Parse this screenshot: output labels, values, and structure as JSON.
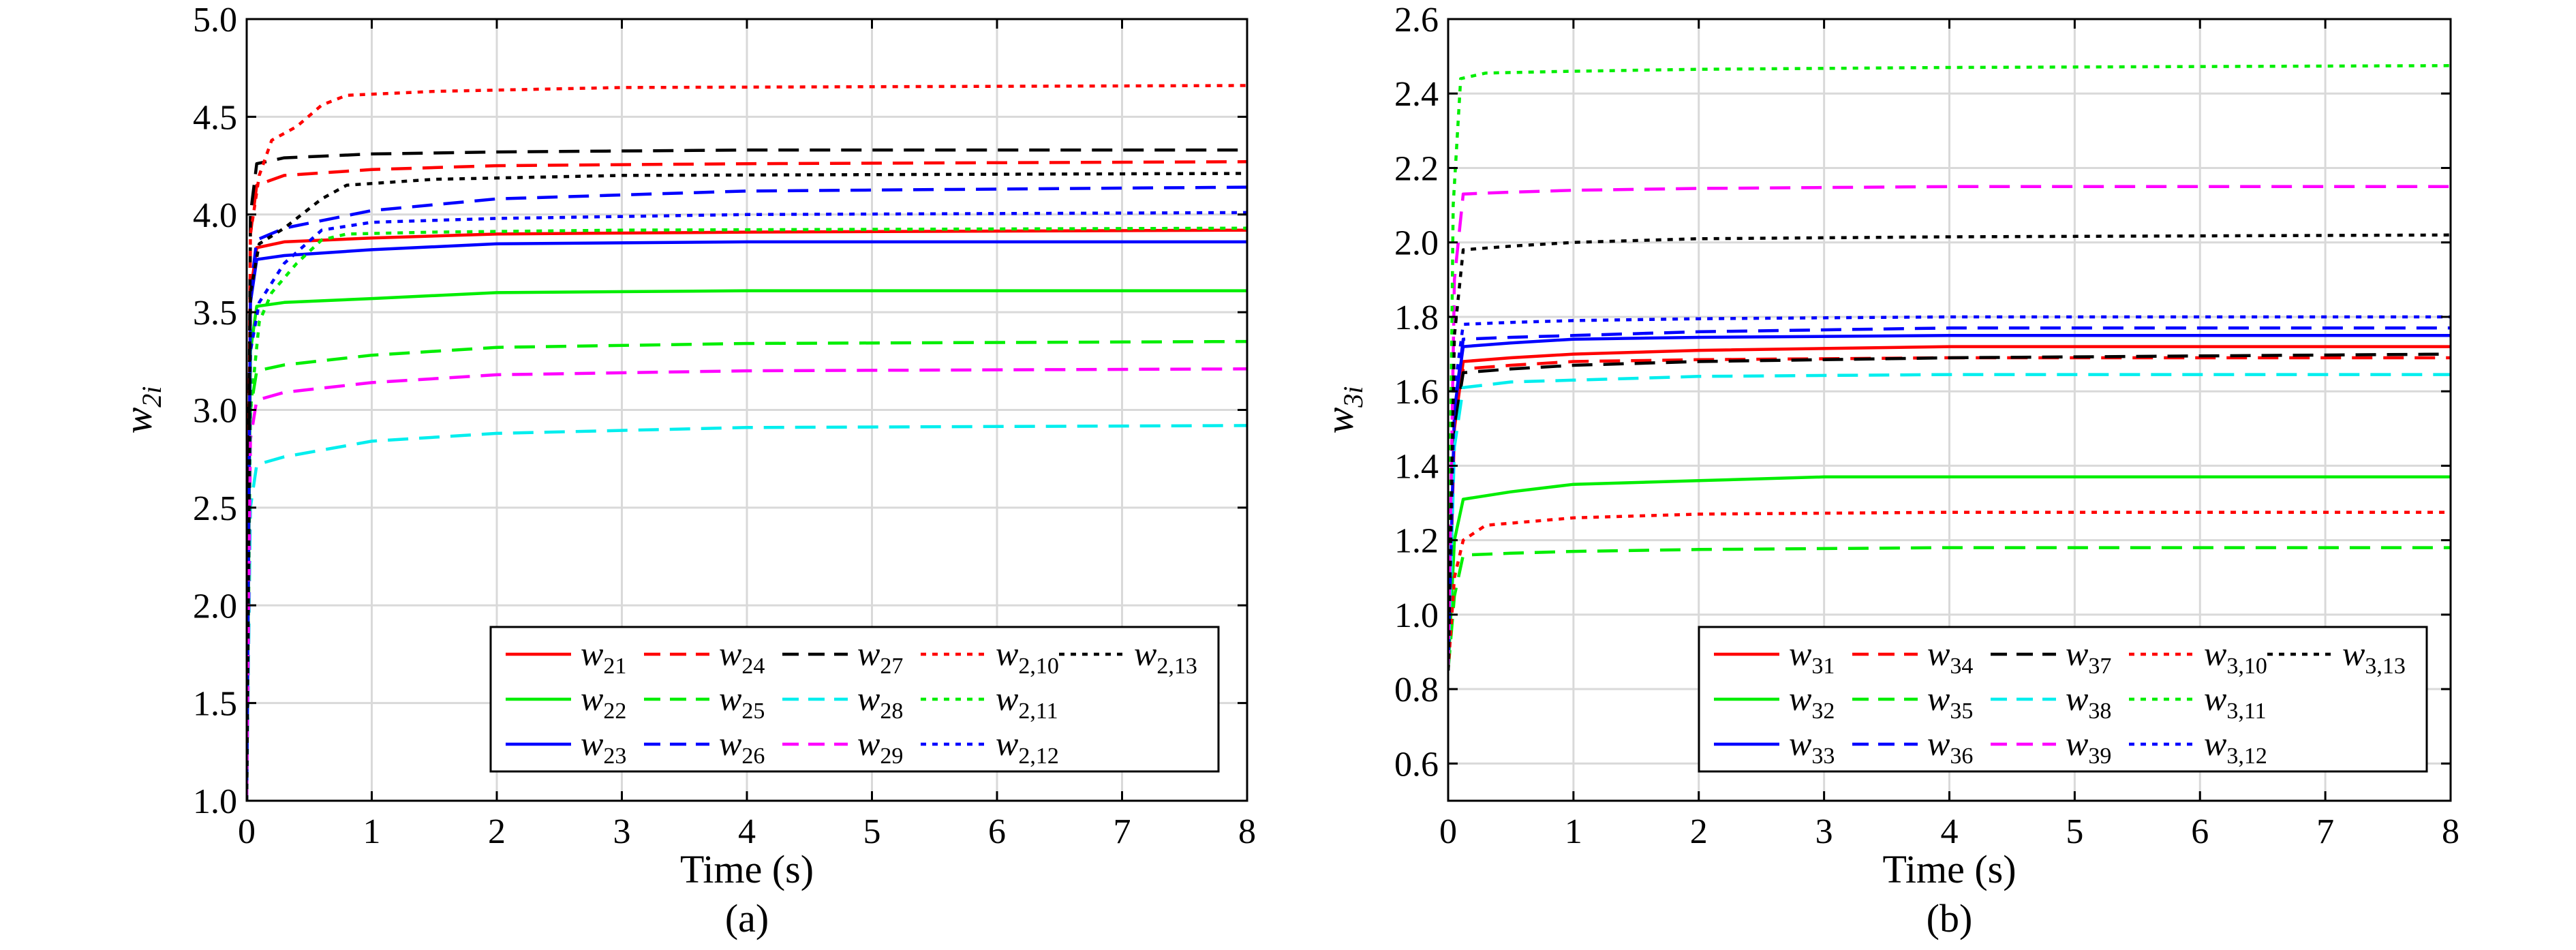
{
  "colors": {
    "red": "#ff0000",
    "green": "#00ee00",
    "blue": "#0000ff",
    "black": "#000000",
    "cyan": "#00eeee",
    "magenta": "#ff00ff",
    "grid": "#d9d9d9"
  },
  "chart_data": [
    {
      "type": "line",
      "panel_label": "(a)",
      "xlabel": "Time (s)",
      "ylabel": "w",
      "ylabel_sub": "2i",
      "xlim": [
        0,
        8
      ],
      "ylim": [
        1.0,
        5.0
      ],
      "xticks": [
        "0",
        "1",
        "2",
        "3",
        "4",
        "5",
        "6",
        "7",
        "8"
      ],
      "yticks": [
        "1.0",
        "1.5",
        "2.0",
        "2.5",
        "3.0",
        "3.5",
        "4.0",
        "4.5",
        "5.0"
      ],
      "grid": true,
      "legend_position": "bottom-right",
      "series": [
        {
          "name": "w",
          "sub": "21",
          "color": "red",
          "style": "solid",
          "points": [
            [
              0,
              1.0
            ],
            [
              0.03,
              3.6
            ],
            [
              0.08,
              3.83
            ],
            [
              0.3,
              3.86
            ],
            [
              1.0,
              3.88
            ],
            [
              2.0,
              3.9
            ],
            [
              4.0,
              3.91
            ],
            [
              8.0,
              3.92
            ]
          ]
        },
        {
          "name": "w",
          "sub": "22",
          "color": "green",
          "style": "solid",
          "points": [
            [
              0,
              1.0
            ],
            [
              0.03,
              3.3
            ],
            [
              0.08,
              3.53
            ],
            [
              0.3,
              3.55
            ],
            [
              1.0,
              3.57
            ],
            [
              2.0,
              3.6
            ],
            [
              4.0,
              3.61
            ],
            [
              8.0,
              3.61
            ]
          ]
        },
        {
          "name": "w",
          "sub": "23",
          "color": "blue",
          "style": "solid",
          "points": [
            [
              0,
              1.0
            ],
            [
              0.03,
              3.55
            ],
            [
              0.08,
              3.77
            ],
            [
              0.3,
              3.79
            ],
            [
              1.0,
              3.82
            ],
            [
              2.0,
              3.85
            ],
            [
              4.0,
              3.86
            ],
            [
              8.0,
              3.86
            ]
          ]
        },
        {
          "name": "w",
          "sub": "24",
          "color": "red",
          "style": "dash",
          "points": [
            [
              0,
              1.0
            ],
            [
              0.03,
              3.9
            ],
            [
              0.08,
              4.15
            ],
            [
              0.3,
              4.2
            ],
            [
              1.0,
              4.23
            ],
            [
              2.0,
              4.25
            ],
            [
              4.0,
              4.26
            ],
            [
              8.0,
              4.27
            ]
          ]
        },
        {
          "name": "w",
          "sub": "25",
          "color": "green",
          "style": "dash",
          "points": [
            [
              0,
              1.0
            ],
            [
              0.03,
              3.0
            ],
            [
              0.08,
              3.2
            ],
            [
              0.3,
              3.23
            ],
            [
              1.0,
              3.28
            ],
            [
              2.0,
              3.32
            ],
            [
              4.0,
              3.34
            ],
            [
              8.0,
              3.35
            ]
          ]
        },
        {
          "name": "w",
          "sub": "26",
          "color": "blue",
          "style": "dash",
          "points": [
            [
              0,
              1.0
            ],
            [
              0.03,
              3.6
            ],
            [
              0.08,
              3.87
            ],
            [
              0.3,
              3.93
            ],
            [
              1.0,
              4.02
            ],
            [
              2.0,
              4.08
            ],
            [
              4.0,
              4.12
            ],
            [
              8.0,
              4.14
            ]
          ]
        },
        {
          "name": "w",
          "sub": "27",
          "color": "black",
          "style": "dash",
          "points": [
            [
              0,
              1.0
            ],
            [
              0.03,
              4.0
            ],
            [
              0.08,
              4.26
            ],
            [
              0.3,
              4.29
            ],
            [
              1.0,
              4.31
            ],
            [
              2.0,
              4.32
            ],
            [
              4.0,
              4.33
            ],
            [
              8.0,
              4.33
            ]
          ]
        },
        {
          "name": "w",
          "sub": "28",
          "color": "cyan",
          "style": "dash",
          "points": [
            [
              0,
              1.0
            ],
            [
              0.03,
              2.5
            ],
            [
              0.08,
              2.72
            ],
            [
              0.3,
              2.76
            ],
            [
              1.0,
              2.84
            ],
            [
              2.0,
              2.88
            ],
            [
              4.0,
              2.91
            ],
            [
              8.0,
              2.92
            ]
          ]
        },
        {
          "name": "w",
          "sub": "29",
          "color": "magenta",
          "style": "dash",
          "points": [
            [
              0,
              1.0
            ],
            [
              0.03,
              2.85
            ],
            [
              0.08,
              3.05
            ],
            [
              0.3,
              3.09
            ],
            [
              1.0,
              3.14
            ],
            [
              2.0,
              3.18
            ],
            [
              4.0,
              3.2
            ],
            [
              8.0,
              3.21
            ]
          ]
        },
        {
          "name": "w",
          "sub": "2,10",
          "color": "red",
          "style": "dot",
          "points": [
            [
              0,
              1.0
            ],
            [
              0.03,
              3.9
            ],
            [
              0.1,
              4.2
            ],
            [
              0.2,
              4.38
            ],
            [
              0.4,
              4.45
            ],
            [
              0.6,
              4.56
            ],
            [
              0.8,
              4.61
            ],
            [
              1.5,
              4.63
            ],
            [
              3.0,
              4.65
            ],
            [
              8.0,
              4.66
            ]
          ]
        },
        {
          "name": "w",
          "sub": "2,11",
          "color": "green",
          "style": "dot",
          "points": [
            [
              0,
              1.0
            ],
            [
              0.03,
              3.0
            ],
            [
              0.1,
              3.45
            ],
            [
              0.2,
              3.6
            ],
            [
              0.4,
              3.75
            ],
            [
              0.6,
              3.87
            ],
            [
              0.8,
              3.9
            ],
            [
              1.5,
              3.91
            ],
            [
              3.0,
              3.92
            ],
            [
              8.0,
              3.93
            ]
          ]
        },
        {
          "name": "w",
          "sub": "2,12",
          "color": "blue",
          "style": "dot",
          "points": [
            [
              0,
              1.0
            ],
            [
              0.03,
              3.3
            ],
            [
              0.1,
              3.55
            ],
            [
              0.3,
              3.75
            ],
            [
              0.6,
              3.92
            ],
            [
              1.0,
              3.96
            ],
            [
              2.0,
              3.98
            ],
            [
              4.0,
              4.0
            ],
            [
              8.0,
              4.01
            ]
          ]
        },
        {
          "name": "w",
          "sub": "2,13",
          "color": "black",
          "style": "dot",
          "points": [
            [
              0,
              1.0
            ],
            [
              0.03,
              3.6
            ],
            [
              0.1,
              3.85
            ],
            [
              0.3,
              3.93
            ],
            [
              0.6,
              4.08
            ],
            [
              0.8,
              4.15
            ],
            [
              1.5,
              4.18
            ],
            [
              3.0,
              4.2
            ],
            [
              8.0,
              4.21
            ]
          ]
        }
      ]
    },
    {
      "type": "line",
      "panel_label": "(b)",
      "xlabel": "Time (s)",
      "ylabel": "w",
      "ylabel_sub": "3i",
      "xlim": [
        0,
        8
      ],
      "ylim": [
        0.5,
        2.6
      ],
      "xticks": [
        "0",
        "1",
        "2",
        "3",
        "4",
        "5",
        "6",
        "7",
        "8"
      ],
      "yticks": [
        "0.6",
        "0.8",
        "1.0",
        "1.2",
        "1.4",
        "1.6",
        "1.8",
        "2.0",
        "2.2",
        "2.4",
        "2.6"
      ],
      "grid": true,
      "legend_position": "bottom-right",
      "series": [
        {
          "name": "w",
          "sub": "31",
          "color": "red",
          "style": "solid",
          "points": [
            [
              0,
              0.85
            ],
            [
              0.05,
              1.5
            ],
            [
              0.12,
              1.68
            ],
            [
              0.5,
              1.69
            ],
            [
              1.0,
              1.7
            ],
            [
              2.0,
              1.71
            ],
            [
              4.0,
              1.72
            ],
            [
              8.0,
              1.72
            ]
          ]
        },
        {
          "name": "w",
          "sub": "32",
          "color": "green",
          "style": "solid",
          "points": [
            [
              0,
              0.85
            ],
            [
              0.05,
              1.2
            ],
            [
              0.12,
              1.31
            ],
            [
              0.5,
              1.33
            ],
            [
              1.0,
              1.35
            ],
            [
              2.0,
              1.36
            ],
            [
              3.0,
              1.37
            ],
            [
              8.0,
              1.37
            ]
          ]
        },
        {
          "name": "w",
          "sub": "33",
          "color": "blue",
          "style": "solid",
          "points": [
            [
              0,
              0.85
            ],
            [
              0.05,
              1.55
            ],
            [
              0.12,
              1.72
            ],
            [
              0.5,
              1.73
            ],
            [
              1.0,
              1.74
            ],
            [
              2.0,
              1.745
            ],
            [
              4.0,
              1.75
            ],
            [
              8.0,
              1.75
            ]
          ]
        },
        {
          "name": "w",
          "sub": "34",
          "color": "red",
          "style": "dash",
          "points": [
            [
              0,
              0.85
            ],
            [
              0.05,
              1.5
            ],
            [
              0.12,
              1.66
            ],
            [
              0.5,
              1.67
            ],
            [
              1.0,
              1.68
            ],
            [
              2.0,
              1.685
            ],
            [
              4.0,
              1.69
            ],
            [
              8.0,
              1.69
            ]
          ]
        },
        {
          "name": "w",
          "sub": "35",
          "color": "green",
          "style": "dash",
          "points": [
            [
              0,
              0.85
            ],
            [
              0.05,
              1.05
            ],
            [
              0.12,
              1.16
            ],
            [
              0.5,
              1.165
            ],
            [
              1.0,
              1.17
            ],
            [
              2.0,
              1.175
            ],
            [
              4.0,
              1.18
            ],
            [
              8.0,
              1.18
            ]
          ]
        },
        {
          "name": "w",
          "sub": "36",
          "color": "blue",
          "style": "dash",
          "points": [
            [
              0,
              0.85
            ],
            [
              0.05,
              1.55
            ],
            [
              0.12,
              1.74
            ],
            [
              0.5,
              1.745
            ],
            [
              1.0,
              1.75
            ],
            [
              2.0,
              1.76
            ],
            [
              4.0,
              1.77
            ],
            [
              8.0,
              1.77
            ]
          ]
        },
        {
          "name": "w",
          "sub": "37",
          "color": "black",
          "style": "dash",
          "points": [
            [
              0,
              0.85
            ],
            [
              0.05,
              1.5
            ],
            [
              0.12,
              1.65
            ],
            [
              0.5,
              1.66
            ],
            [
              1.0,
              1.67
            ],
            [
              2.0,
              1.68
            ],
            [
              4.0,
              1.69
            ],
            [
              8.0,
              1.7
            ]
          ]
        },
        {
          "name": "w",
          "sub": "38",
          "color": "cyan",
          "style": "dash",
          "points": [
            [
              0,
              0.85
            ],
            [
              0.05,
              1.45
            ],
            [
              0.12,
              1.61
            ],
            [
              0.5,
              1.625
            ],
            [
              1.0,
              1.63
            ],
            [
              2.0,
              1.64
            ],
            [
              4.0,
              1.645
            ],
            [
              8.0,
              1.645
            ]
          ]
        },
        {
          "name": "w",
          "sub": "39",
          "color": "magenta",
          "style": "dash",
          "points": [
            [
              0,
              0.85
            ],
            [
              0.05,
              1.9
            ],
            [
              0.12,
              2.13
            ],
            [
              0.5,
              2.135
            ],
            [
              1.0,
              2.14
            ],
            [
              2.0,
              2.145
            ],
            [
              4.0,
              2.15
            ],
            [
              8.0,
              2.15
            ]
          ]
        },
        {
          "name": "w",
          "sub": "3,10",
          "color": "red",
          "style": "dot",
          "points": [
            [
              0,
              0.85
            ],
            [
              0.05,
              1.1
            ],
            [
              0.12,
              1.2
            ],
            [
              0.3,
              1.24
            ],
            [
              1.0,
              1.26
            ],
            [
              2.0,
              1.27
            ],
            [
              4.0,
              1.275
            ],
            [
              8.0,
              1.275
            ]
          ]
        },
        {
          "name": "w",
          "sub": "3,11",
          "color": "green",
          "style": "dot",
          "points": [
            [
              0,
              0.85
            ],
            [
              0.04,
              2.1
            ],
            [
              0.1,
              2.44
            ],
            [
              0.3,
              2.455
            ],
            [
              1.0,
              2.46
            ],
            [
              2.0,
              2.465
            ],
            [
              4.0,
              2.47
            ],
            [
              8.0,
              2.475
            ]
          ]
        },
        {
          "name": "w",
          "sub": "3,12",
          "color": "blue",
          "style": "dot",
          "points": [
            [
              0,
              0.85
            ],
            [
              0.05,
              1.6
            ],
            [
              0.12,
              1.78
            ],
            [
              0.5,
              1.785
            ],
            [
              1.0,
              1.79
            ],
            [
              2.0,
              1.795
            ],
            [
              4.0,
              1.8
            ],
            [
              8.0,
              1.8
            ]
          ]
        },
        {
          "name": "w",
          "sub": "3,13",
          "color": "black",
          "style": "dot",
          "points": [
            [
              0,
              0.85
            ],
            [
              0.05,
              1.75
            ],
            [
              0.12,
              1.98
            ],
            [
              0.5,
              1.99
            ],
            [
              1.0,
              2.0
            ],
            [
              2.0,
              2.01
            ],
            [
              4.0,
              2.015
            ],
            [
              8.0,
              2.02
            ]
          ]
        }
      ]
    }
  ]
}
